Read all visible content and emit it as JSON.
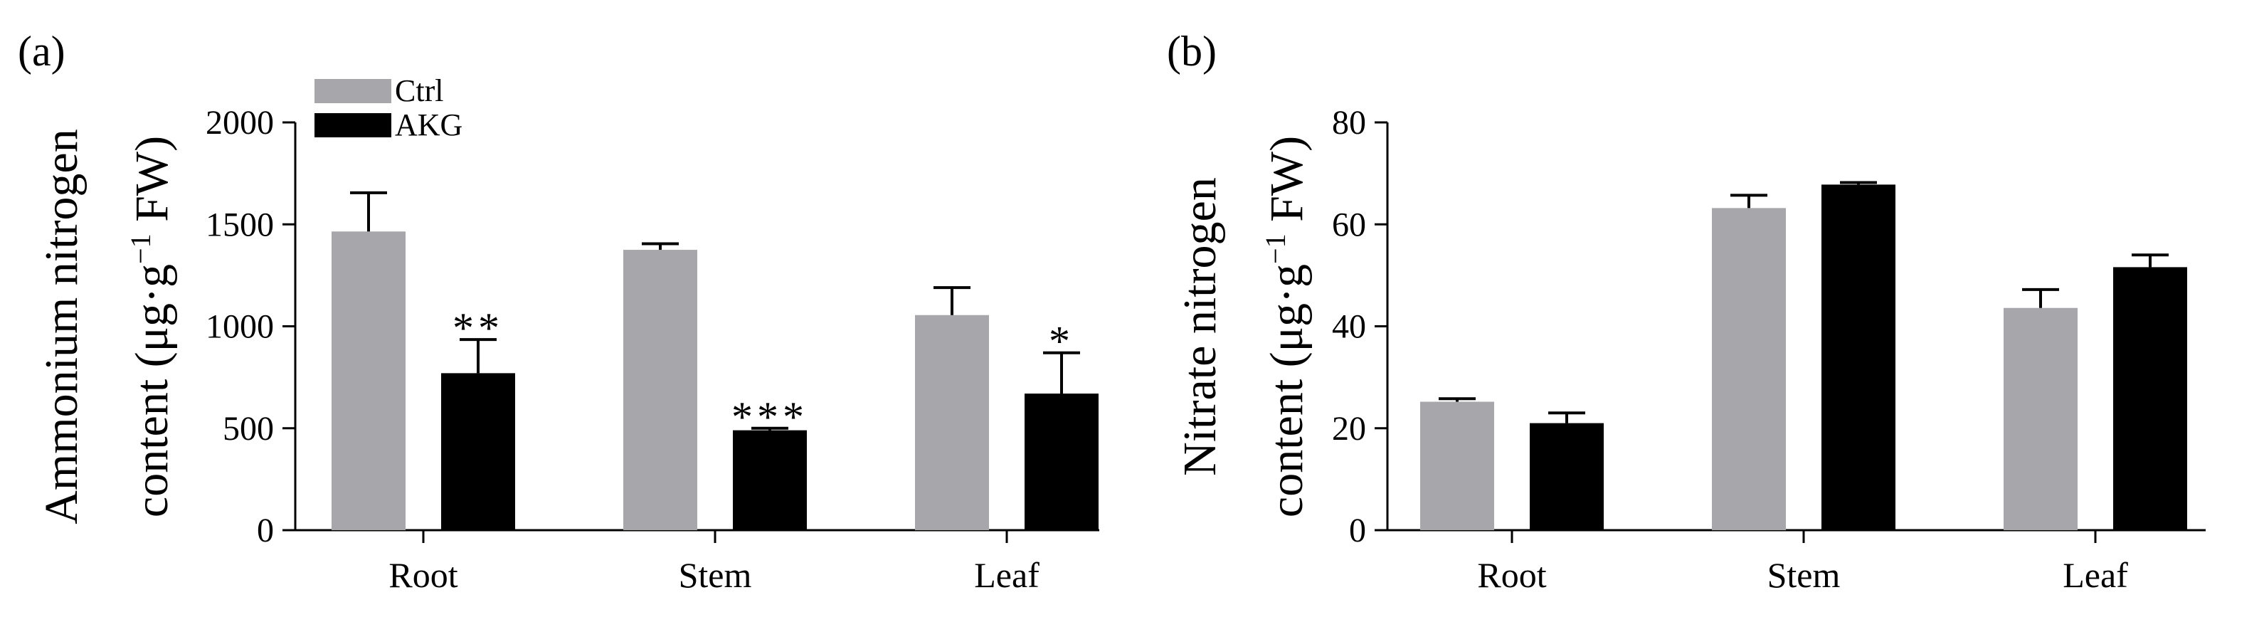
{
  "colors": {
    "ctrl": "#a7a7ab",
    "akg": "#000000",
    "axis": "#000000"
  },
  "legend": {
    "entries": [
      "Ctrl",
      "AKG"
    ]
  },
  "chart_data": [
    {
      "type": "bar",
      "panel_label": "(a)",
      "categories": [
        "Root",
        "Stem",
        "Leaf"
      ],
      "ylabel_line1": "Ammonium nitrogen",
      "ylabel_line2_prefix": "content (μg·g",
      "ylabel_superscript": "−1",
      "ylabel_line2_suffix": " FW)",
      "ylim": [
        0,
        2000
      ],
      "yticks": [
        "0",
        "500",
        "1000",
        "1500",
        "2000"
      ],
      "yticks_values": [
        0,
        500,
        1000,
        1500,
        2000
      ],
      "legend": "top-left",
      "series": [
        {
          "name": "Ctrl",
          "values": [
            1465,
            1375,
            1055
          ],
          "errors": [
            190,
            30,
            135
          ]
        },
        {
          "name": "AKG",
          "values": [
            770,
            490,
            670
          ],
          "errors": [
            165,
            10,
            200
          ]
        }
      ],
      "significance": [
        "**",
        "***",
        "*"
      ]
    },
    {
      "type": "bar",
      "panel_label": "(b)",
      "categories": [
        "Root",
        "Stem",
        "Leaf"
      ],
      "ylabel_line1": "Nitrate nitrogen",
      "ylabel_line2_prefix": "content (μg·g",
      "ylabel_superscript": "−1",
      "ylabel_line2_suffix": " FW)",
      "ylim": [
        0,
        80
      ],
      "yticks": [
        "0",
        "20",
        "40",
        "60",
        "80"
      ],
      "yticks_values": [
        0,
        20,
        40,
        60,
        80
      ],
      "series": [
        {
          "name": "Ctrl",
          "values": [
            25.2,
            63.2,
            43.6
          ],
          "errors": [
            0.6,
            2.5,
            3.6
          ]
        },
        {
          "name": "AKG",
          "values": [
            21.0,
            67.8,
            51.6
          ],
          "errors": [
            2.0,
            0.4,
            2.4
          ]
        }
      ]
    }
  ]
}
